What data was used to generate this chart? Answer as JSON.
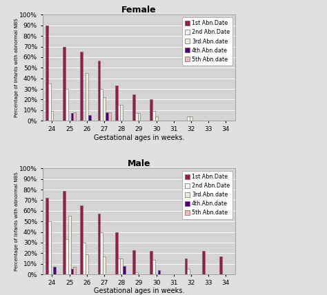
{
  "female": {
    "title": "Female",
    "gestational_ages": [
      24,
      25,
      26,
      27,
      28,
      29,
      30,
      31,
      32,
      33,
      34
    ],
    "series": {
      "1st Abn.Date": [
        90,
        70,
        65,
        57,
        33,
        25,
        20,
        0,
        0,
        0,
        0
      ],
      "2nd Abn.Date": [
        35,
        30,
        0,
        30,
        15,
        7,
        9,
        0,
        4,
        0,
        0
      ],
      "3rd.Abn.date": [
        9,
        0,
        45,
        22,
        15,
        7,
        4,
        0,
        4,
        0,
        0
      ],
      "4th.Abn.date": [
        0,
        7,
        5,
        8,
        0,
        0,
        0,
        0,
        0,
        0,
        0
      ],
      "5th Abn.date": [
        0,
        8,
        0,
        8,
        0,
        0,
        0,
        0,
        0,
        0,
        0
      ]
    }
  },
  "male": {
    "title": "Male",
    "gestational_ages": [
      24,
      25,
      26,
      27,
      28,
      29,
      30,
      31,
      32,
      33,
      34
    ],
    "series": {
      "1st Abn.Date": [
        72,
        79,
        65,
        57,
        40,
        23,
        22,
        0,
        15,
        22,
        17
      ],
      "2nd Abn.Date": [
        50,
        33,
        30,
        40,
        15,
        2,
        14,
        0,
        5,
        0,
        0
      ],
      "3rd.Abn.date": [
        0,
        55,
        19,
        17,
        15,
        0,
        0,
        0,
        0,
        0,
        0
      ],
      "4th.Abn.date": [
        7,
        5,
        0,
        0,
        8,
        0,
        4,
        0,
        0,
        0,
        0
      ],
      "5th Abn.date": [
        0,
        7,
        0,
        0,
        0,
        0,
        0,
        0,
        0,
        0,
        0
      ]
    }
  },
  "colors": {
    "1st Abn.Date": "#9b1b4b",
    "2nd Abn.Date": "#f5f5f0",
    "3rd.Abn.date": "#ececdc",
    "4th.Abn.date": "#4b0082",
    "5th Abn.date": "#f4b8b8"
  },
  "legend_labels": [
    "1st Abn.Date",
    "2nd Abn.Date",
    "3rd.Abn.date",
    "4th.Abn.date",
    "5th Abn.date"
  ],
  "ylabel": "Percentage of infants with abnormal NBS",
  "xlabel": "Gestational ages in weeks.",
  "bg_color": "#d4d4d4",
  "fig_bg": "#e0e0e0",
  "bar_width": 0.15,
  "ylim": [
    0,
    100
  ],
  "yticks": [
    0,
    10,
    20,
    30,
    40,
    50,
    60,
    70,
    80,
    90,
    100
  ],
  "yticklabels": [
    "0%",
    "10%",
    "20%",
    "30%",
    "40%",
    "50%",
    "60%",
    "70%",
    "80%",
    "90%",
    "100%"
  ]
}
